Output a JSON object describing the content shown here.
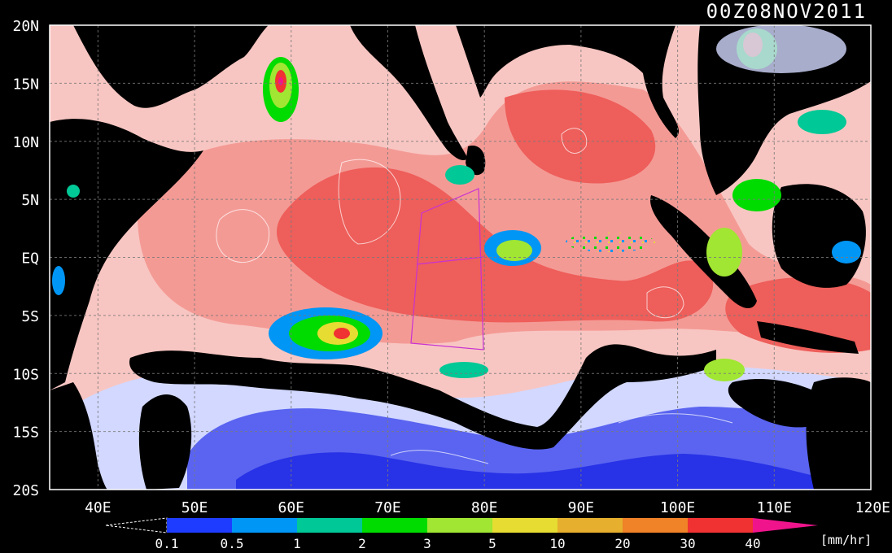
{
  "timestamp": "00Z08NOV2011",
  "lat_labels": [
    "20N",
    "15N",
    "10N",
    "5N",
    "EQ",
    "5S",
    "10S",
    "15S",
    "20S"
  ],
  "lon_labels": [
    "40E",
    "50E",
    "60E",
    "70E",
    "80E",
    "90E",
    "100E",
    "110E",
    "120E"
  ],
  "legend": {
    "values": [
      "0.1",
      "0.5",
      "1",
      "2",
      "3",
      "5",
      "10",
      "20",
      "30",
      "40"
    ],
    "unit": "[mm/hr]",
    "colors": [
      "#1e3cff",
      "#0096f5",
      "#00c896",
      "#00dc00",
      "#a0e632",
      "#e6dc32",
      "#e6af2d",
      "#f08228",
      "#f03232",
      "#f0148c"
    ]
  },
  "colors": {
    "land": "#000000",
    "ocean_light_pink": "#f8c6c2",
    "ocean_pink": "#f49a95",
    "ocean_red": "#ee5e5a",
    "light_blue": "#d2d8ff",
    "blue": "#5a64f0",
    "deep_blue": "#2832e6"
  }
}
